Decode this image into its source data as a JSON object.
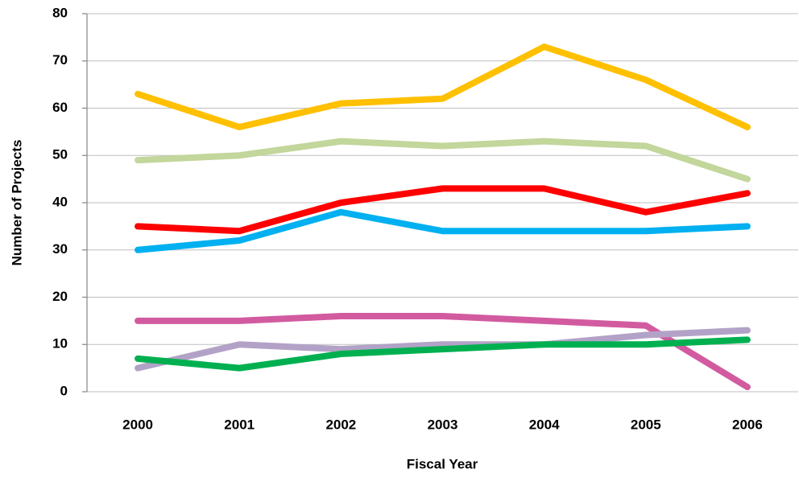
{
  "chart_data": {
    "type": "line",
    "x_label": "Fiscal Year",
    "y_label": "Number of Projects",
    "categories": [
      "2000",
      "2001",
      "2002",
      "2003",
      "2004",
      "2005",
      "2006"
    ],
    "series": [
      {
        "color": "#ffc000",
        "values": [
          63,
          56,
          61,
          62,
          73,
          66,
          56
        ]
      },
      {
        "color": "#c3d69b",
        "values": [
          49,
          50,
          53,
          52,
          53,
          52,
          45
        ]
      },
      {
        "color": "#ff0000",
        "values": [
          35,
          34,
          40,
          43,
          43,
          38,
          42
        ]
      },
      {
        "color": "#00b0f0",
        "values": [
          30,
          32,
          38,
          34,
          34,
          34,
          35
        ]
      },
      {
        "color": "#d25ba0",
        "values": [
          15,
          15,
          16,
          16,
          15,
          14,
          1
        ]
      },
      {
        "color": "#b3a2c7",
        "values": [
          5,
          10,
          9,
          10,
          10,
          12,
          13
        ]
      },
      {
        "color": "#00b050",
        "values": [
          7,
          5,
          8,
          9,
          10,
          10,
          11
        ]
      }
    ],
    "ylim": [
      0,
      80
    ],
    "yticks": [
      0,
      10,
      20,
      30,
      40,
      50,
      60,
      70,
      80
    ],
    "grid": true
  }
}
